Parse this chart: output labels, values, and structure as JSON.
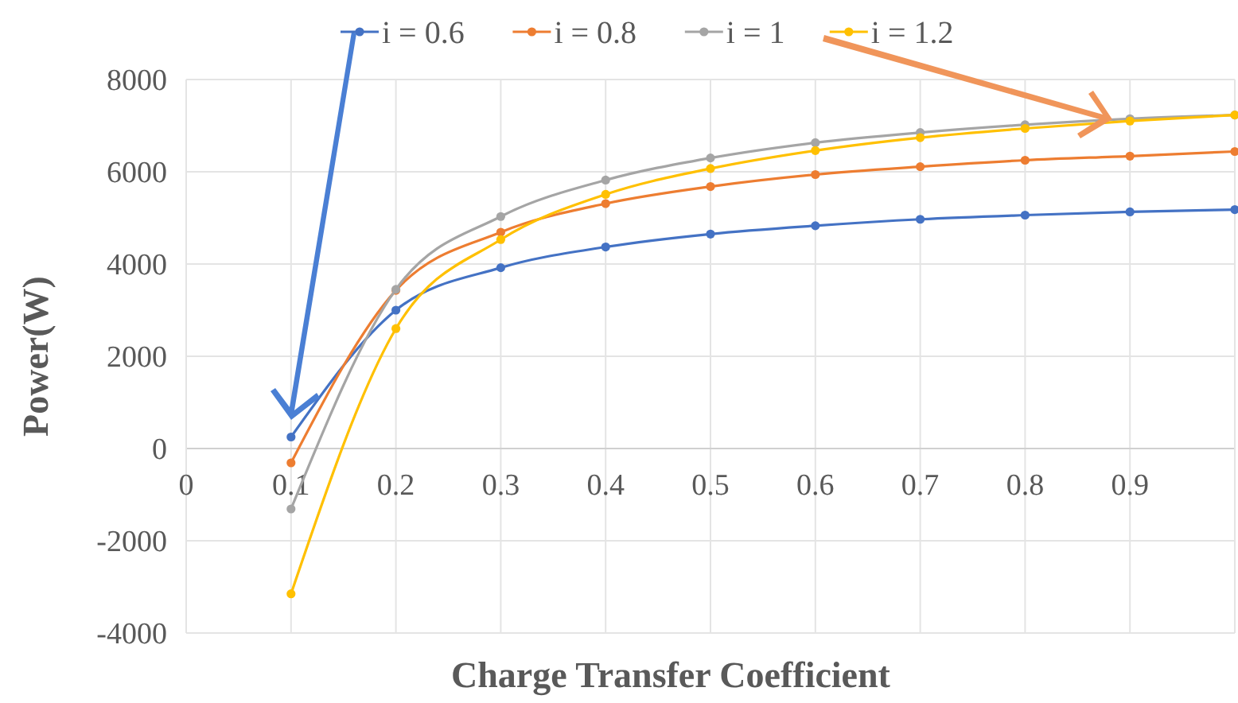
{
  "chart_data": {
    "type": "line",
    "xlabel": "Charge Transfer Coefficient",
    "ylabel": "Power(W)",
    "x": [
      0.1,
      0.2,
      0.3,
      0.4,
      0.5,
      0.6,
      0.7,
      0.8,
      0.9,
      1.0
    ],
    "series": [
      {
        "name": "i = 0.6",
        "color": "#4472c4",
        "values": [
          250,
          3000,
          3920,
          4370,
          4650,
          4830,
          4970,
          5060,
          5130,
          5180
        ]
      },
      {
        "name": "i = 0.8",
        "color": "#ed7d31",
        "values": [
          -310,
          3430,
          4690,
          5310,
          5680,
          5940,
          6110,
          6250,
          6340,
          6440
        ]
      },
      {
        "name": "i = 1",
        "color": "#a5a5a5",
        "values": [
          -1310,
          3450,
          5030,
          5820,
          6300,
          6630,
          6850,
          7020,
          7150,
          7230
        ]
      },
      {
        "name": "i = 1.2",
        "color": "#ffc000",
        "values": [
          -3150,
          2600,
          4530,
          5510,
          6070,
          6460,
          6740,
          6940,
          7100,
          7230
        ]
      }
    ],
    "xlim": [
      0,
      1
    ],
    "xticks": [
      0,
      0.1,
      0.2,
      0.3,
      0.4,
      0.5,
      0.6,
      0.7,
      0.8,
      0.9
    ],
    "ylim": [
      -4000,
      8000
    ],
    "yticks": [
      -4000,
      -2000,
      0,
      2000,
      4000,
      6000,
      8000
    ],
    "grid": true,
    "legend": "top",
    "marker": "circle",
    "line_style": "solid"
  }
}
